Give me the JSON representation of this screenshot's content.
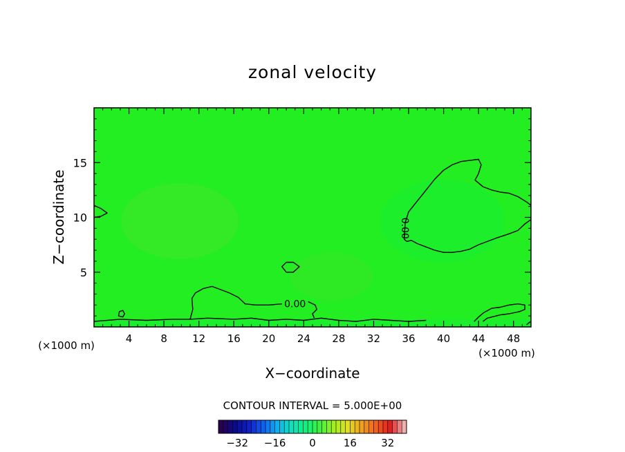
{
  "chart_data": {
    "type": "heatmap",
    "title": "zonal velocity",
    "xlabel": "X−coordinate",
    "ylabel": "Z−coordinate",
    "x_unit": "(×1000 m)",
    "xlim": [
      0,
      50
    ],
    "ylim": [
      0,
      20
    ],
    "x_ticks": [
      4,
      8,
      12,
      16,
      20,
      24,
      28,
      32,
      36,
      40,
      44,
      48
    ],
    "x_tick_labels": [
      "4",
      "8",
      "12",
      "16",
      "20",
      "24",
      "28",
      "32",
      "36",
      "40",
      "44",
      "48"
    ],
    "y_ticks": [
      5,
      10,
      15
    ],
    "y_tick_labels": [
      "5",
      "10",
      "15"
    ],
    "field_color": "#22ee22",
    "contour_color": "#000000",
    "contour_interval_text": "CONTOUR INTERVAL = 5.000E+00",
    "contour_levels": [
      0
    ],
    "contour_labels": [
      {
        "text": "0.00",
        "x": 35.6,
        "z": 9.0,
        "rotate": true
      },
      {
        "text": "0.00",
        "x": 23.0,
        "z": 2.1,
        "rotate": false
      }
    ],
    "contours": [
      {
        "level": 0,
        "closed": true,
        "points": [
          [
            35.5,
            8.0
          ],
          [
            35.6,
            9.5
          ],
          [
            36.0,
            10.5
          ],
          [
            37.0,
            11.5
          ],
          [
            38.0,
            12.5
          ],
          [
            39.0,
            13.5
          ],
          [
            40.0,
            14.3
          ],
          [
            41.0,
            14.8
          ],
          [
            42.0,
            15.1
          ],
          [
            43.0,
            15.2
          ],
          [
            44.0,
            15.3
          ],
          [
            44.3,
            14.8
          ],
          [
            44.0,
            14.0
          ],
          [
            43.6,
            13.4
          ],
          [
            44.5,
            12.8
          ],
          [
            45.5,
            12.5
          ],
          [
            46.5,
            12.3
          ],
          [
            47.5,
            12.2
          ],
          [
            48.5,
            11.9
          ],
          [
            49.5,
            11.4
          ],
          [
            50.0,
            11.1
          ],
          [
            50.0,
            9.8
          ],
          [
            49.3,
            9.4
          ],
          [
            48.5,
            8.8
          ],
          [
            47.5,
            8.5
          ],
          [
            46.0,
            8.1
          ],
          [
            45.0,
            7.8
          ],
          [
            44.0,
            7.5
          ],
          [
            43.5,
            7.3
          ],
          [
            43.0,
            7.1
          ],
          [
            42.0,
            6.9
          ],
          [
            41.0,
            6.8
          ],
          [
            40.0,
            6.8
          ],
          [
            39.0,
            7.0
          ],
          [
            38.0,
            7.3
          ],
          [
            37.0,
            7.6
          ],
          [
            36.3,
            7.9
          ],
          [
            35.8,
            7.8
          ]
        ]
      },
      {
        "level": 0,
        "closed": false,
        "points": [
          [
            0.0,
            11.1
          ],
          [
            0.8,
            10.8
          ],
          [
            1.5,
            10.4
          ],
          [
            0.8,
            10.1
          ],
          [
            0.0,
            10.0
          ]
        ]
      },
      {
        "level": 0,
        "closed": true,
        "points": [
          [
            21.5,
            5.5
          ],
          [
            22.0,
            5.9
          ],
          [
            22.8,
            5.9
          ],
          [
            23.5,
            5.5
          ],
          [
            22.8,
            5.0
          ],
          [
            22.0,
            5.0
          ]
        ]
      },
      {
        "level": 0,
        "closed": false,
        "points": [
          [
            0.0,
            0.5
          ],
          [
            3.0,
            0.7
          ],
          [
            6.0,
            0.6
          ],
          [
            9.0,
            0.7
          ],
          [
            11.0,
            0.7
          ],
          [
            13.0,
            0.8
          ],
          [
            16.0,
            0.7
          ],
          [
            18.0,
            0.8
          ],
          [
            20.0,
            0.6
          ],
          [
            22.0,
            0.7
          ],
          [
            24.0,
            0.6
          ],
          [
            26.0,
            0.8
          ],
          [
            28.0,
            0.6
          ],
          [
            30.0,
            0.5
          ],
          [
            32.0,
            0.7
          ],
          [
            34.0,
            0.6
          ],
          [
            36.0,
            0.5
          ],
          [
            38.0,
            0.6
          ]
        ]
      },
      {
        "level": 0,
        "closed": false,
        "points": [
          [
            11.0,
            0.7
          ],
          [
            11.3,
            1.6
          ],
          [
            11.2,
            2.6
          ],
          [
            11.6,
            3.1
          ],
          [
            12.5,
            3.5
          ],
          [
            13.5,
            3.7
          ],
          [
            14.5,
            3.4
          ],
          [
            15.5,
            3.1
          ],
          [
            16.5,
            2.7
          ],
          [
            17.3,
            2.1
          ],
          [
            18.5,
            2.0
          ],
          [
            20.0,
            2.0
          ],
          [
            21.5,
            2.1
          ]
        ]
      },
      {
        "level": 0,
        "closed": false,
        "points": [
          [
            24.5,
            2.3
          ],
          [
            25.3,
            2.0
          ],
          [
            25.5,
            1.6
          ],
          [
            25.0,
            1.2
          ],
          [
            25.2,
            0.8
          ]
        ]
      },
      {
        "level": 0,
        "closed": true,
        "points": [
          [
            2.8,
            1.0
          ],
          [
            2.9,
            1.4
          ],
          [
            3.3,
            1.5
          ],
          [
            3.5,
            1.2
          ],
          [
            3.3,
            0.9
          ]
        ]
      },
      {
        "level": 0,
        "closed": false,
        "points": [
          [
            43.5,
            0.5
          ],
          [
            44.0,
            0.9
          ],
          [
            44.6,
            1.3
          ],
          [
            45.5,
            1.7
          ],
          [
            46.5,
            1.8
          ],
          [
            47.5,
            2.0
          ],
          [
            48.5,
            2.1
          ],
          [
            49.3,
            2.0
          ],
          [
            49.3,
            1.6
          ],
          [
            48.7,
            1.4
          ],
          [
            47.5,
            1.2
          ],
          [
            46.5,
            1.1
          ],
          [
            45.0,
            0.8
          ],
          [
            44.5,
            0.5
          ]
        ]
      },
      {
        "level": 0,
        "closed": false,
        "points": [
          [
            49.5,
            0.2
          ],
          [
            49.8,
            0.4
          ],
          [
            50.0,
            0.5
          ]
        ]
      }
    ],
    "colorbar": {
      "ticks": [
        -32,
        -16,
        0,
        16,
        32
      ],
      "tick_labels": [
        "−32",
        "−16",
        "0",
        "16",
        "32"
      ],
      "range": [
        -40,
        40
      ],
      "bands": 40,
      "colors": [
        "#2a0050",
        "#0a0a8c",
        "#1020c8",
        "#1060f0",
        "#10b0f0",
        "#10e0c0",
        "#10f080",
        "#40f040",
        "#a0f020",
        "#e0e020",
        "#f0a020",
        "#f06020",
        "#e02020",
        "#f0b0b0"
      ]
    }
  }
}
